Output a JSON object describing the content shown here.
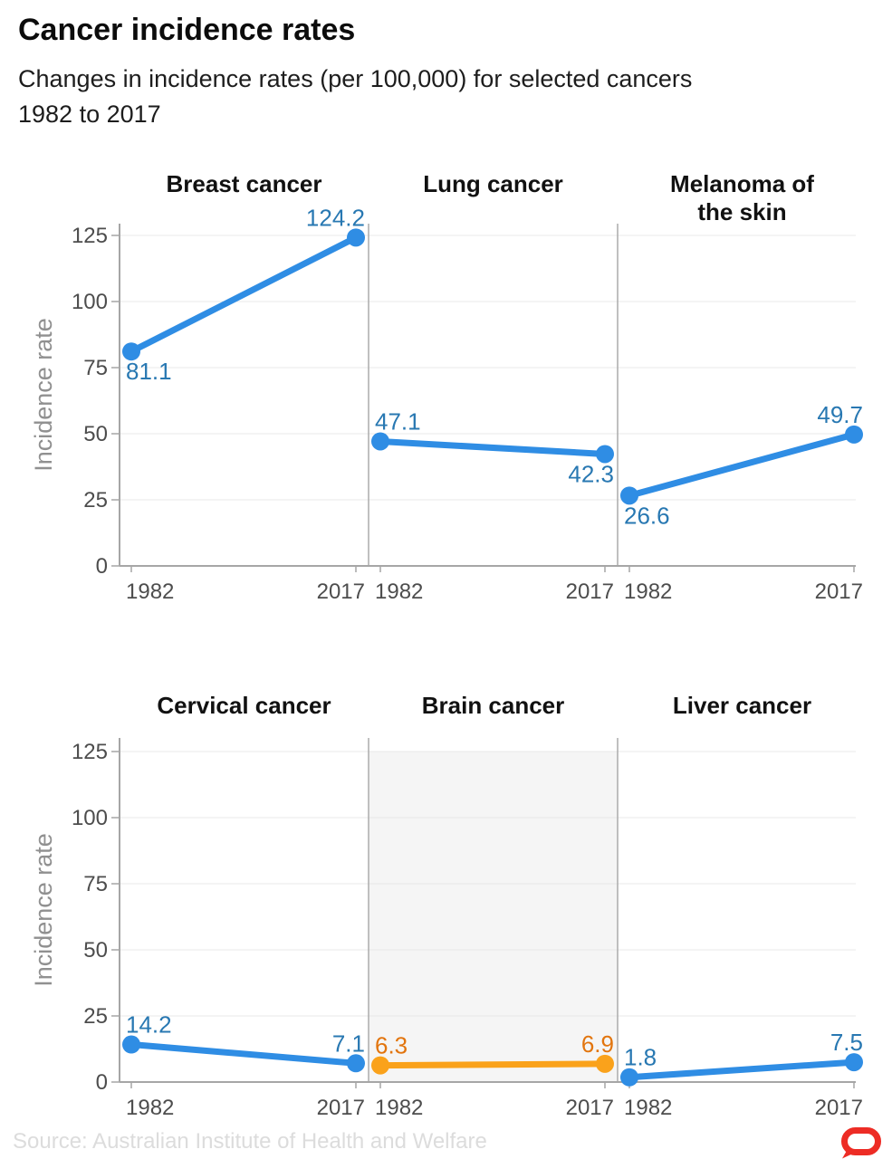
{
  "header": {
    "title": "Cancer incidence rates",
    "subtitle_lines": [
      "Changes in incidence rates (per 100,000) for selected cancers",
      "1982 to 2017"
    ]
  },
  "chart_data": {
    "type": "line",
    "layout": "small-multiples 2 rows x 3 cols, shared y-axis per row",
    "x_categories": [
      "1982",
      "2017"
    ],
    "ylabel": "Incidence rate",
    "ylim": [
      0,
      125
    ],
    "yticks": [
      0,
      25,
      50,
      75,
      100,
      125
    ],
    "grid": "horizontal",
    "panels": [
      {
        "title_lines": [
          "Breast cancer"
        ],
        "values": [
          81.1,
          124.2
        ],
        "line_color": "#2f8de4",
        "label_color": "#2878b2",
        "label_positions": [
          "below",
          "above"
        ],
        "highlighted": false
      },
      {
        "title_lines": [
          "Lung cancer"
        ],
        "values": [
          47.1,
          42.3
        ],
        "line_color": "#2f8de4",
        "label_color": "#2878b2",
        "label_positions": [
          "above",
          "below"
        ],
        "highlighted": false
      },
      {
        "title_lines": [
          "Melanoma of",
          "the skin"
        ],
        "values": [
          26.6,
          49.7
        ],
        "line_color": "#2f8de4",
        "label_color": "#2878b2",
        "label_positions": [
          "below",
          "above"
        ],
        "highlighted": false
      },
      {
        "title_lines": [
          "Cervical cancer"
        ],
        "values": [
          14.2,
          7.1
        ],
        "line_color": "#2f8de4",
        "label_color": "#2878b2",
        "label_positions": [
          "above",
          "above"
        ],
        "highlighted": false
      },
      {
        "title_lines": [
          "Brain cancer"
        ],
        "values": [
          6.3,
          6.9
        ],
        "line_color": "#faa21b",
        "label_color": "#e2750e",
        "label_positions": [
          "above",
          "above"
        ],
        "highlighted": true
      },
      {
        "title_lines": [
          "Liver cancer"
        ],
        "values": [
          1.8,
          7.5
        ],
        "line_color": "#2f8de4",
        "label_color": "#2878b2",
        "label_positions": [
          "above",
          "above"
        ],
        "highlighted": false
      }
    ],
    "style": {
      "grid_color": "#e8e8e8",
      "axis_color": "#a6a6a6",
      "separator_color": "#ababab",
      "tick_label_color": "#4d4d4d",
      "axis_title_color": "#909090",
      "panel_title_color": "#111111",
      "highlight_bg": "#f5f5f5"
    }
  },
  "footer": {
    "source": "Source: Australian Institute of Health and Welfare",
    "logo": "the-conversation-logo",
    "logo_color": "#ed2c25"
  }
}
